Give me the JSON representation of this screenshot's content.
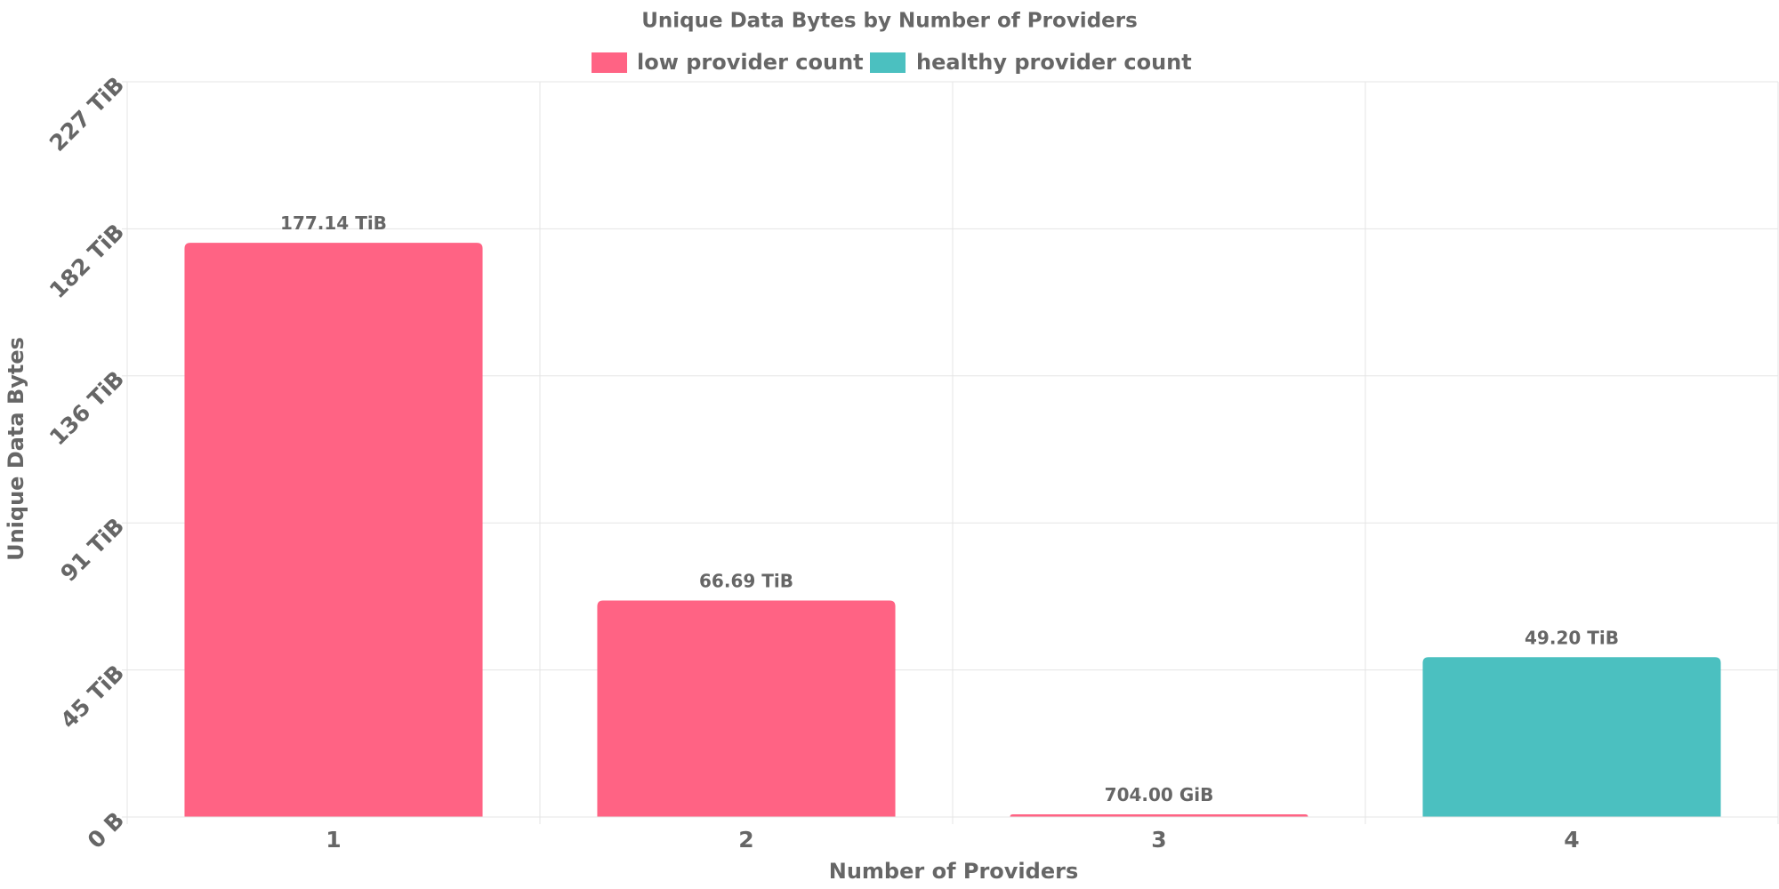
{
  "chart_data": {
    "type": "bar",
    "title": "Unique Data Bytes by Number of Providers",
    "x_label": "Number of Providers",
    "y_label": "Unique Data Bytes",
    "categories": [
      "1",
      "2",
      "3",
      "4"
    ],
    "series": [
      {
        "name": "low provider count",
        "color": "#ff6384",
        "values": [
          177.14,
          66.69,
          0.6875,
          null
        ],
        "value_labels": [
          "177.14 TiB",
          "66.69 TiB",
          "704.00 GiB",
          null
        ]
      },
      {
        "name": "healthy provider count",
        "color": "#4bc0c0",
        "values": [
          null,
          null,
          null,
          49.2
        ],
        "value_labels": [
          null,
          null,
          null,
          "49.20 TiB"
        ]
      }
    ],
    "ylim": [
      0,
      227
    ],
    "yticks": [
      {
        "value": 0,
        "label": "0 B"
      },
      {
        "value": 45.4,
        "label": "45 TiB"
      },
      {
        "value": 90.8,
        "label": "91 TiB"
      },
      {
        "value": 136.2,
        "label": "136 TiB"
      },
      {
        "value": 181.6,
        "label": "182 TiB"
      },
      {
        "value": 227,
        "label": "227 TiB"
      }
    ],
    "grid": true,
    "legend": "top"
  }
}
